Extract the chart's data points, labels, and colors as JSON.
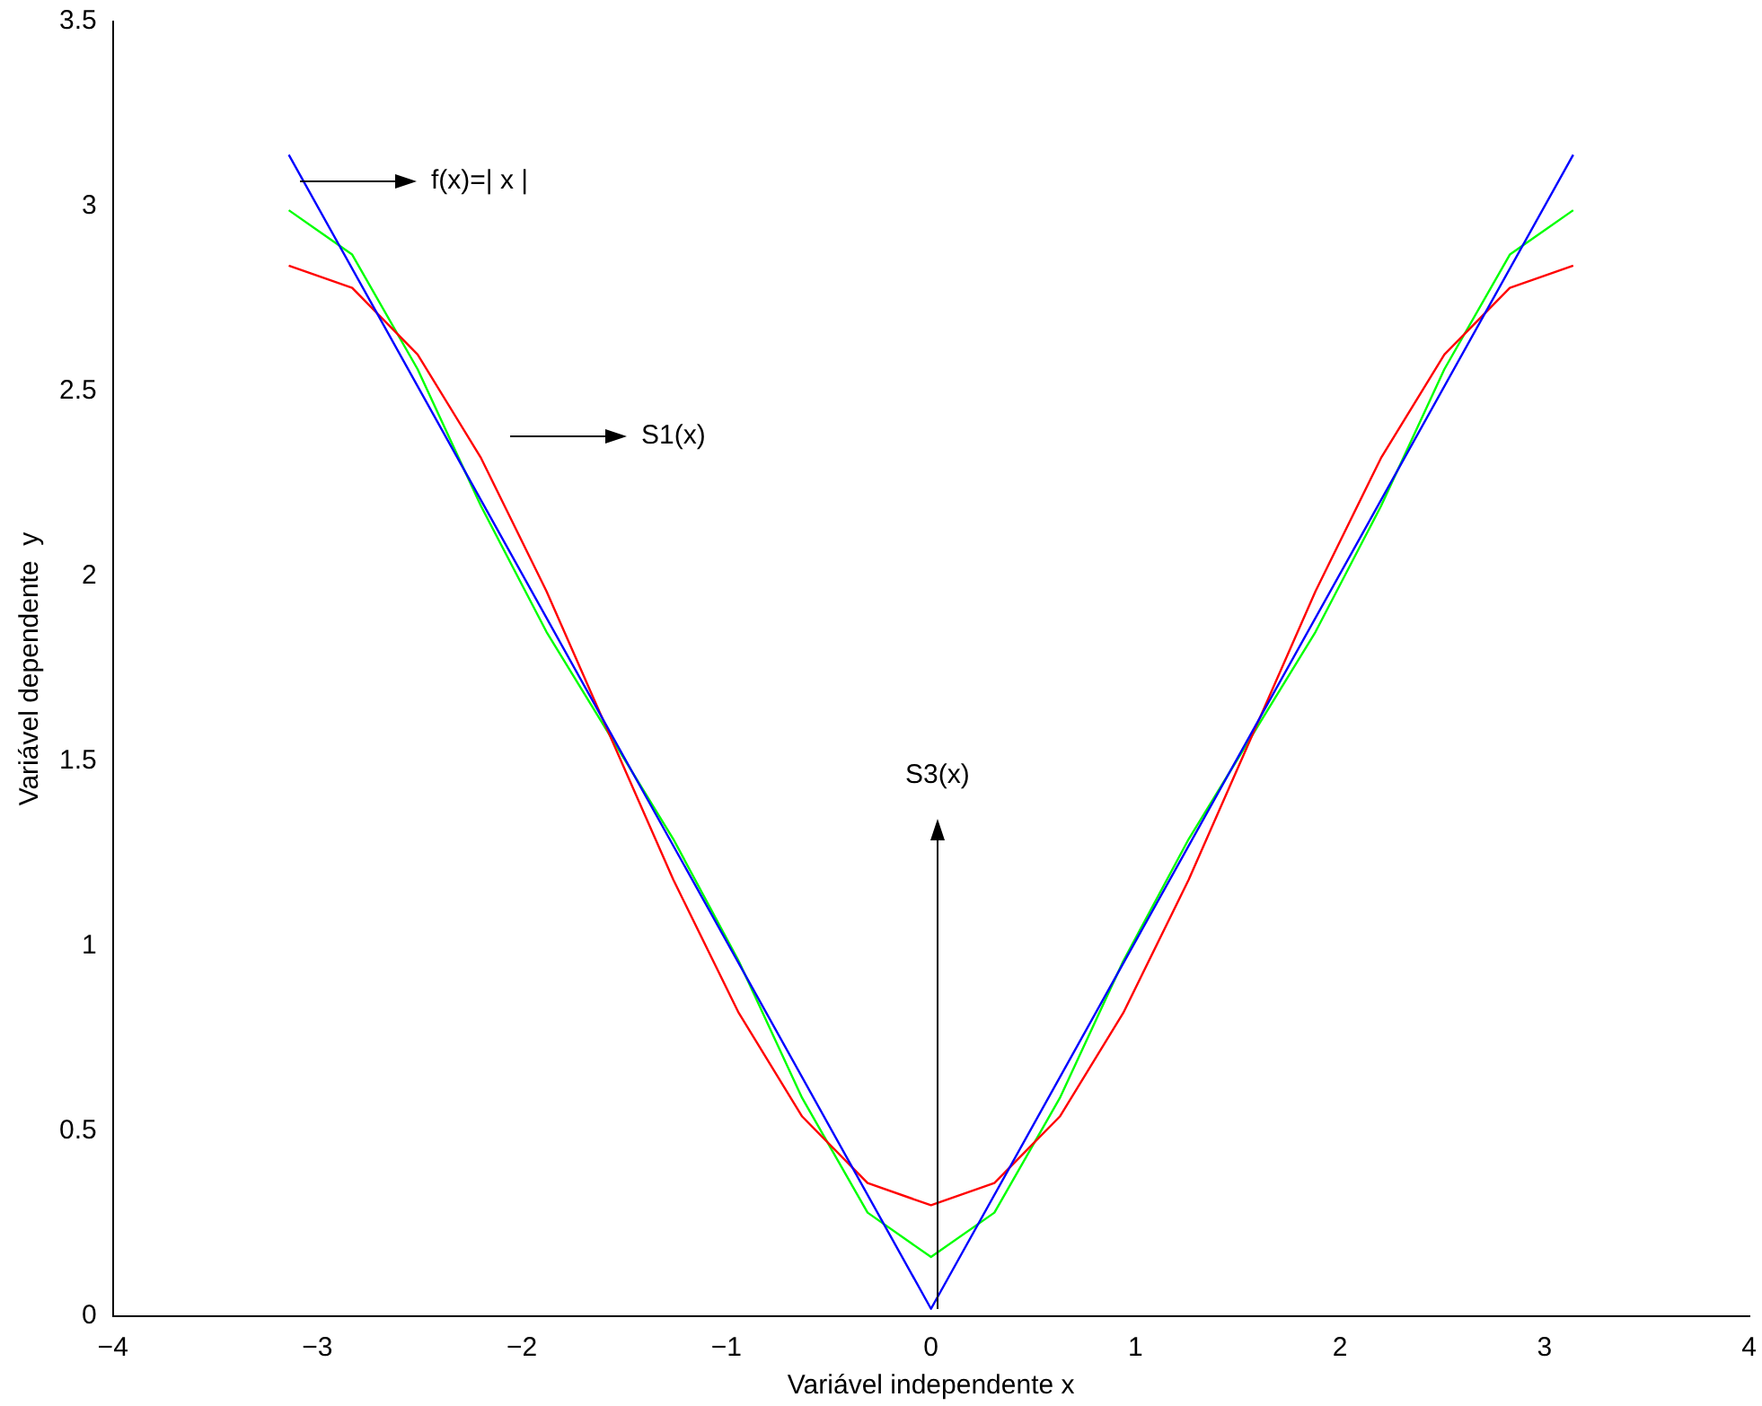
{
  "chart_data": {
    "type": "line",
    "xlabel": "Variável independente x",
    "ylabel": "Variável dependente  y",
    "x": [
      -3.14,
      -2.83,
      -2.51,
      -2.2,
      -1.88,
      -1.57,
      -1.26,
      -0.94,
      -0.63,
      -0.31,
      0,
      0.31,
      0.63,
      0.94,
      1.26,
      1.57,
      1.88,
      2.2,
      2.51,
      2.83,
      3.14
    ],
    "series": [
      {
        "x": [
          -3.14,
          0,
          3.14
        ],
        "values": [
          3.14,
          0.02,
          3.14
        ],
        "color": "#0000ff"
      },
      {
        "values": [
          2.84,
          2.78,
          2.6,
          2.32,
          1.96,
          1.57,
          1.18,
          0.82,
          0.54,
          0.36,
          0.3,
          0.36,
          0.54,
          0.82,
          1.18,
          1.57,
          1.96,
          2.32,
          2.6,
          2.78,
          2.84
        ],
        "color": "#ff0000"
      },
      {
        "values": [
          2.99,
          2.87,
          2.56,
          2.19,
          1.85,
          1.57,
          1.29,
          0.96,
          0.59,
          0.28,
          0.16,
          0.28,
          0.59,
          0.96,
          1.29,
          1.57,
          1.85,
          2.19,
          2.56,
          2.87,
          2.99
        ],
        "color": "#00ff00"
      }
    ],
    "xlim": [
      -4,
      4
    ],
    "xticks": [
      -4,
      -3,
      -2,
      -1,
      0,
      1,
      2,
      3,
      4
    ],
    "ylim": [
      0,
      3.5
    ],
    "yticks": [
      0,
      0.5,
      1,
      1.5,
      2,
      2.5,
      3,
      3.5
    ],
    "grid": false,
    "legend": false,
    "marker": "none",
    "line_style": "solid",
    "annotations": [
      "f(x)=| x |",
      "S1(x)",
      "S3(x)"
    ]
  }
}
